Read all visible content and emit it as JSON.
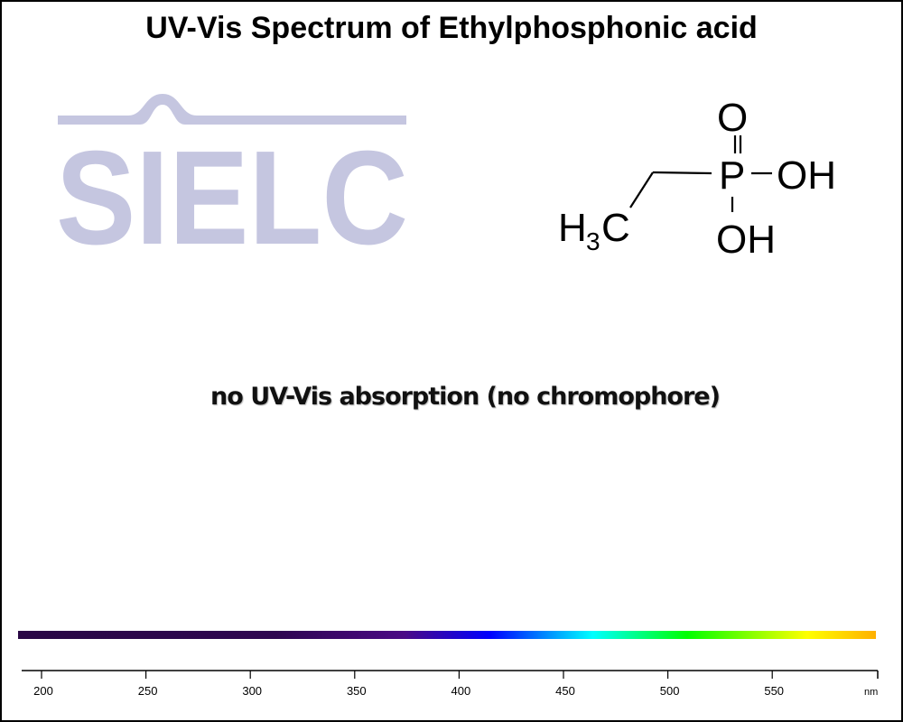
{
  "title": "UV-Vis Spectrum of Ethylphosphonic acid",
  "logo_text": "SIELC",
  "molecule": {
    "ch3": "H",
    "ch3_sub": "3",
    "ch3_c": "C",
    "p": "P",
    "o": "O",
    "oh1": "OH",
    "oh2": "OH"
  },
  "note": "no UV-Vis absorption (no chromophore)",
  "colors": {
    "logo": "#c5c6e0",
    "text": "#000000"
  },
  "chart_data": {
    "type": "line",
    "title": "UV-Vis Spectrum of Ethylphosphonic acid",
    "xlabel": "nm",
    "xlim": [
      190,
      600
    ],
    "x_ticks": [
      200,
      250,
      300,
      350,
      400,
      450,
      500,
      550
    ],
    "x_tick_labels": [
      "200",
      "250",
      "300",
      "350",
      "400",
      "450",
      "500",
      "550"
    ],
    "series": [],
    "annotation": "no UV-Vis absorption (no chromophore)",
    "spectrum_bar": "wavelength color gradient (dark purple to orange)"
  }
}
